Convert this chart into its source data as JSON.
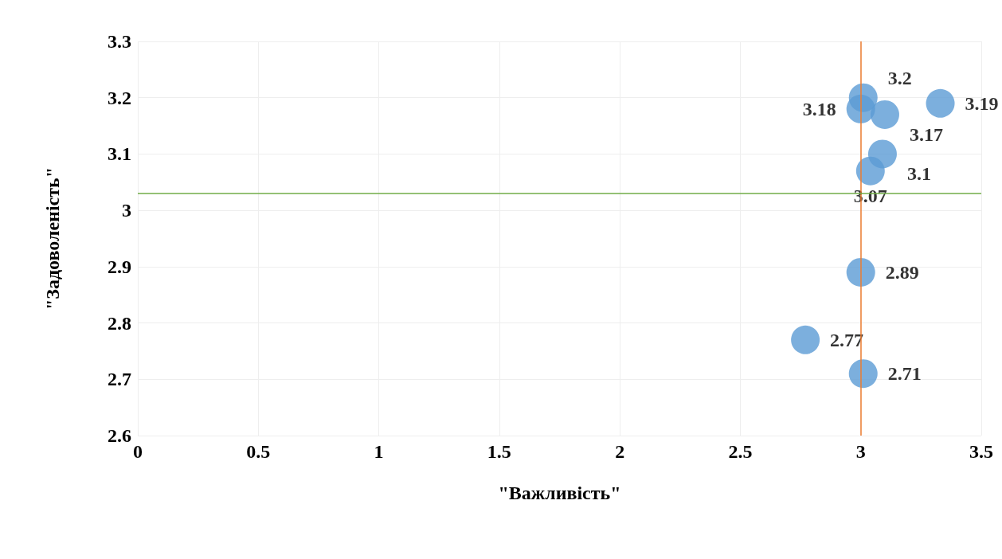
{
  "chart_data": {
    "type": "bubble",
    "xlabel": "\"Важливість\"",
    "ylabel": "\"Задоволеність\"",
    "x": [
      3.01,
      3.0,
      3.1,
      3.33,
      3.09,
      3.04,
      3.0,
      2.77,
      3.01
    ],
    "values": [
      3.2,
      3.18,
      3.17,
      3.19,
      3.1,
      3.07,
      2.89,
      2.77,
      2.71
    ],
    "sizes": [
      1,
      1,
      1,
      1,
      1,
      1,
      1,
      1,
      1
    ],
    "color": "#5b9bd5",
    "data_labels": true,
    "xlim": [
      0,
      3.5
    ],
    "xticks": [
      0,
      0.5,
      1,
      1.5,
      2,
      2.5,
      3,
      3.5
    ],
    "ylim": [
      2.6,
      3.3
    ],
    "yticks": [
      2.6,
      2.7,
      2.8,
      2.9,
      3,
      3.1,
      3.2,
      3.3
    ],
    "grid": true,
    "ref_lines": [
      {
        "axis": "x",
        "value": 3,
        "color": "#ed7d31"
      },
      {
        "axis": "y",
        "value": 3.03,
        "color": "#70ad47"
      }
    ]
  }
}
